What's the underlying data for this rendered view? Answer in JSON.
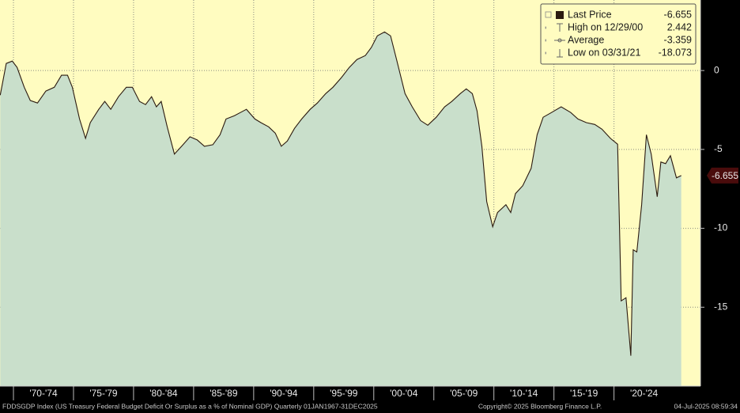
{
  "chart_data": {
    "type": "area",
    "title": "FDDSGDP Index (US Treasury Federal Budget Deficit Or Surplus as a % of Nominal GDP)  Quarterly 01JAN1967-31DEC2025",
    "copyright": "Copyright© 2025 Bloomberg Finance L.P.",
    "timestamp": "04-Jul-2025 08:59:34",
    "x": [
      1968.9,
      1969.4,
      1969.9,
      1970.3,
      1970.9,
      1971.4,
      1972.0,
      1972.7,
      1973.4,
      1974.0,
      1974.5,
      1974.9,
      1975.5,
      1976.0,
      1976.4,
      1977.1,
      1977.6,
      1978.1,
      1978.75,
      1979.4,
      1979.9,
      1980.5,
      1981.0,
      1981.5,
      1981.9,
      1982.3,
      1982.8,
      1983.4,
      1984.0,
      1984.7,
      1985.3,
      1985.9,
      1986.6,
      1987.2,
      1987.7,
      1988.4,
      1988.9,
      1989.4,
      1990.1,
      1990.6,
      1991.25,
      1991.8,
      1992.3,
      1992.8,
      1993.4,
      1994.0,
      1994.7,
      1995.3,
      1996.0,
      1996.6,
      1997.3,
      1997.96,
      1998.6,
      1999.3,
      1999.8,
      2000.3,
      2000.9,
      2001.4,
      2001.9,
      2002.6,
      2003.2,
      2003.9,
      2004.5,
      2005.2,
      2005.9,
      2006.5,
      2007.2,
      2007.7,
      2008.2,
      2008.6,
      2009.0,
      2009.4,
      2009.9,
      2010.3,
      2011.0,
      2011.4,
      2011.8,
      2012.4,
      2013.1,
      2013.6,
      2014.1,
      2014.8,
      2015.6,
      2016.4,
      2017.0,
      2017.7,
      2018.4,
      2019.0,
      2019.7,
      2020.3,
      2020.6,
      2021.0,
      2021.4,
      2021.6,
      2021.9,
      2022.3,
      2022.7,
      2023.1,
      2023.6,
      2023.9,
      2024.3,
      2024.7,
      2025.2,
      2025.6
    ],
    "series": [
      {
        "name": "Last Price",
        "color": "#2b1a10",
        "fill": "#c9dfcb",
        "values": [
          -1.56,
          0.45,
          0.6,
          0.2,
          -1.06,
          -1.9,
          -2.06,
          -1.3,
          -1.06,
          -0.3,
          -0.3,
          -1.06,
          -3.07,
          -4.3,
          -3.3,
          -2.46,
          -1.96,
          -2.46,
          -1.66,
          -1.06,
          -1.06,
          -1.96,
          -2.16,
          -1.66,
          -2.3,
          -1.96,
          -3.57,
          -5.3,
          -4.8,
          -4.2,
          -4.4,
          -4.8,
          -4.7,
          -4.07,
          -3.07,
          -2.86,
          -2.66,
          -2.46,
          -3.07,
          -3.3,
          -3.57,
          -3.97,
          -4.8,
          -4.47,
          -3.67,
          -3.07,
          -2.46,
          -2.06,
          -1.46,
          -1.06,
          -0.45,
          0.2,
          0.7,
          0.95,
          1.46,
          2.2,
          2.442,
          2.2,
          0.7,
          -1.46,
          -2.3,
          -3.17,
          -3.47,
          -2.96,
          -2.3,
          -1.96,
          -1.46,
          -1.16,
          -1.46,
          -2.56,
          -4.8,
          -8.3,
          -9.9,
          -9.0,
          -8.5,
          -9.0,
          -7.8,
          -7.3,
          -6.2,
          -4.07,
          -2.96,
          -2.66,
          -2.3,
          -2.66,
          -3.07,
          -3.3,
          -3.42,
          -3.72,
          -4.3,
          -4.67,
          -14.6,
          -14.4,
          -18.073,
          -11.36,
          -11.5,
          -8.5,
          -4.07,
          -5.3,
          -8.0,
          -5.8,
          -5.9,
          -5.4,
          -6.8,
          -6.655
        ]
      }
    ],
    "legend": [
      {
        "label": "Last Price",
        "value": -6.655
      },
      {
        "label": "High on 12/29/00",
        "value": 2.442
      },
      {
        "label": "Average",
        "value": -3.359
      },
      {
        "label": "Low on 03/31/21",
        "value": -18.073
      }
    ],
    "xlim": [
      1968.88,
      2027.2
    ],
    "ylim": [
      -20,
      4.47
    ],
    "yticks": [
      0,
      -5,
      -10,
      -15
    ],
    "xticks": [
      {
        "value": 1972.5,
        "label": "'70-'74"
      },
      {
        "value": 1977.5,
        "label": "'75-'79"
      },
      {
        "value": 1982.5,
        "label": "'80-'84"
      },
      {
        "value": 1987.5,
        "label": "'85-'89"
      },
      {
        "value": 1992.5,
        "label": "'90-'94"
      },
      {
        "value": 1997.5,
        "label": "'95-'99"
      },
      {
        "value": 2002.5,
        "label": "'00-'04"
      },
      {
        "value": 2007.5,
        "label": "'05-'09"
      },
      {
        "value": 2012.5,
        "label": "'10-'14"
      },
      {
        "value": 2017.5,
        "label": "'15-'19"
      },
      {
        "value": 2022.5,
        "label": "'20-'24"
      }
    ],
    "background": "#fffcc0",
    "grid": true
  }
}
